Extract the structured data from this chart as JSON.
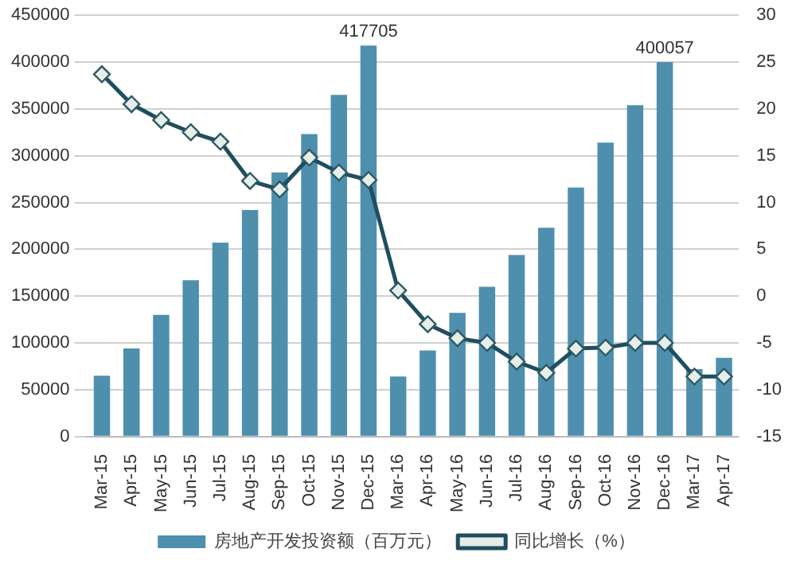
{
  "chart_data": {
    "type": "bar",
    "categories": [
      "Mar-15",
      "Apr-15",
      "May-15",
      "Jun-15",
      "Jul-15",
      "Aug-15",
      "Sep-15",
      "Oct-15",
      "Nov-15",
      "Dec-15",
      "Mar-16",
      "Apr-16",
      "May-16",
      "Jun-16",
      "Jul-16",
      "Aug-16",
      "Sep-16",
      "Oct-16",
      "Nov-16",
      "Dec-16",
      "Mar-17",
      "Apr-17"
    ],
    "series": [
      {
        "name": "房地产开发投资额（百万元）",
        "color": "#4e8fae",
        "values": [
          65000,
          94000,
          130000,
          167000,
          207000,
          242000,
          282000,
          323000,
          365000,
          417705,
          64000,
          92000,
          132000,
          160000,
          194000,
          223000,
          266000,
          314000,
          354000,
          400057,
          72000,
          84000
        ],
        "value_labels": [
          null,
          null,
          null,
          null,
          null,
          null,
          null,
          null,
          null,
          "417705",
          null,
          null,
          null,
          null,
          null,
          null,
          null,
          null,
          null,
          "400057",
          null,
          null
        ]
      },
      {
        "name": "同比增长（%）",
        "type": "line",
        "axis": "y2",
        "color": "#1f4e5f",
        "marker": "diamond",
        "values": [
          23.7,
          20.5,
          18.8,
          17.5,
          16.5,
          12.3,
          11.4,
          14.8,
          13.2,
          12.4,
          0.6,
          -3,
          -4.5,
          -5,
          -7,
          -8.2,
          -5.6,
          -5.5,
          -5,
          -5,
          -8.6,
          -8.6
        ]
      }
    ],
    "ylim": [
      0,
      450000
    ],
    "yticks": [
      0,
      50000,
      100000,
      150000,
      200000,
      250000,
      300000,
      350000,
      400000,
      450000
    ],
    "y2lim": [
      -15,
      30
    ],
    "y2ticks": [
      -15,
      -10,
      -5,
      0,
      5,
      10,
      15,
      20,
      25,
      30
    ],
    "grid": "y",
    "legend": "bottom"
  }
}
